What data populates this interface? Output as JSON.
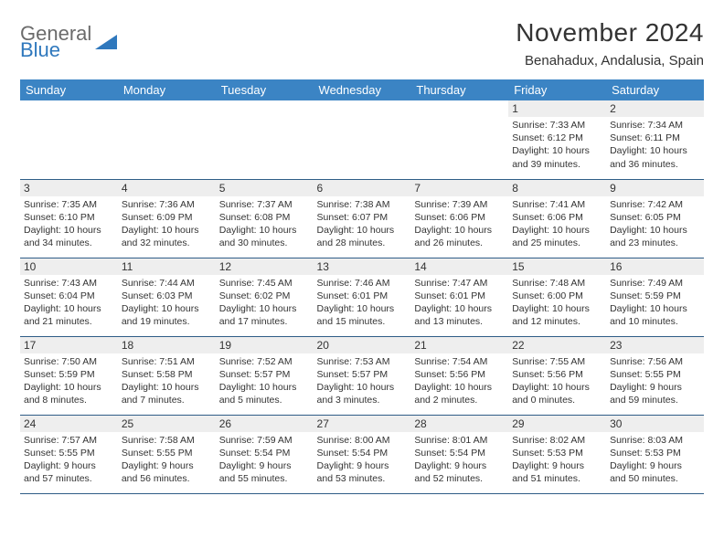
{
  "logo": {
    "general": "General",
    "blue": "Blue",
    "triangle_color": "#2f78bd"
  },
  "title": "November 2024",
  "subtitle": "Benahadux, Andalusia, Spain",
  "colors": {
    "header_bg": "#3b84c4",
    "header_text": "#ffffff",
    "daynum_bg": "#eeeeee",
    "border": "#2f5d87",
    "body_text": "#333333"
  },
  "days_of_week": [
    "Sunday",
    "Monday",
    "Tuesday",
    "Wednesday",
    "Thursday",
    "Friday",
    "Saturday"
  ],
  "weeks": [
    [
      null,
      null,
      null,
      null,
      null,
      {
        "n": "1",
        "sr": "Sunrise: 7:33 AM",
        "ss": "Sunset: 6:12 PM",
        "dl": "Daylight: 10 hours and 39 minutes."
      },
      {
        "n": "2",
        "sr": "Sunrise: 7:34 AM",
        "ss": "Sunset: 6:11 PM",
        "dl": "Daylight: 10 hours and 36 minutes."
      }
    ],
    [
      {
        "n": "3",
        "sr": "Sunrise: 7:35 AM",
        "ss": "Sunset: 6:10 PM",
        "dl": "Daylight: 10 hours and 34 minutes."
      },
      {
        "n": "4",
        "sr": "Sunrise: 7:36 AM",
        "ss": "Sunset: 6:09 PM",
        "dl": "Daylight: 10 hours and 32 minutes."
      },
      {
        "n": "5",
        "sr": "Sunrise: 7:37 AM",
        "ss": "Sunset: 6:08 PM",
        "dl": "Daylight: 10 hours and 30 minutes."
      },
      {
        "n": "6",
        "sr": "Sunrise: 7:38 AM",
        "ss": "Sunset: 6:07 PM",
        "dl": "Daylight: 10 hours and 28 minutes."
      },
      {
        "n": "7",
        "sr": "Sunrise: 7:39 AM",
        "ss": "Sunset: 6:06 PM",
        "dl": "Daylight: 10 hours and 26 minutes."
      },
      {
        "n": "8",
        "sr": "Sunrise: 7:41 AM",
        "ss": "Sunset: 6:06 PM",
        "dl": "Daylight: 10 hours and 25 minutes."
      },
      {
        "n": "9",
        "sr": "Sunrise: 7:42 AM",
        "ss": "Sunset: 6:05 PM",
        "dl": "Daylight: 10 hours and 23 minutes."
      }
    ],
    [
      {
        "n": "10",
        "sr": "Sunrise: 7:43 AM",
        "ss": "Sunset: 6:04 PM",
        "dl": "Daylight: 10 hours and 21 minutes."
      },
      {
        "n": "11",
        "sr": "Sunrise: 7:44 AM",
        "ss": "Sunset: 6:03 PM",
        "dl": "Daylight: 10 hours and 19 minutes."
      },
      {
        "n": "12",
        "sr": "Sunrise: 7:45 AM",
        "ss": "Sunset: 6:02 PM",
        "dl": "Daylight: 10 hours and 17 minutes."
      },
      {
        "n": "13",
        "sr": "Sunrise: 7:46 AM",
        "ss": "Sunset: 6:01 PM",
        "dl": "Daylight: 10 hours and 15 minutes."
      },
      {
        "n": "14",
        "sr": "Sunrise: 7:47 AM",
        "ss": "Sunset: 6:01 PM",
        "dl": "Daylight: 10 hours and 13 minutes."
      },
      {
        "n": "15",
        "sr": "Sunrise: 7:48 AM",
        "ss": "Sunset: 6:00 PM",
        "dl": "Daylight: 10 hours and 12 minutes."
      },
      {
        "n": "16",
        "sr": "Sunrise: 7:49 AM",
        "ss": "Sunset: 5:59 PM",
        "dl": "Daylight: 10 hours and 10 minutes."
      }
    ],
    [
      {
        "n": "17",
        "sr": "Sunrise: 7:50 AM",
        "ss": "Sunset: 5:59 PM",
        "dl": "Daylight: 10 hours and 8 minutes."
      },
      {
        "n": "18",
        "sr": "Sunrise: 7:51 AM",
        "ss": "Sunset: 5:58 PM",
        "dl": "Daylight: 10 hours and 7 minutes."
      },
      {
        "n": "19",
        "sr": "Sunrise: 7:52 AM",
        "ss": "Sunset: 5:57 PM",
        "dl": "Daylight: 10 hours and 5 minutes."
      },
      {
        "n": "20",
        "sr": "Sunrise: 7:53 AM",
        "ss": "Sunset: 5:57 PM",
        "dl": "Daylight: 10 hours and 3 minutes."
      },
      {
        "n": "21",
        "sr": "Sunrise: 7:54 AM",
        "ss": "Sunset: 5:56 PM",
        "dl": "Daylight: 10 hours and 2 minutes."
      },
      {
        "n": "22",
        "sr": "Sunrise: 7:55 AM",
        "ss": "Sunset: 5:56 PM",
        "dl": "Daylight: 10 hours and 0 minutes."
      },
      {
        "n": "23",
        "sr": "Sunrise: 7:56 AM",
        "ss": "Sunset: 5:55 PM",
        "dl": "Daylight: 9 hours and 59 minutes."
      }
    ],
    [
      {
        "n": "24",
        "sr": "Sunrise: 7:57 AM",
        "ss": "Sunset: 5:55 PM",
        "dl": "Daylight: 9 hours and 57 minutes."
      },
      {
        "n": "25",
        "sr": "Sunrise: 7:58 AM",
        "ss": "Sunset: 5:55 PM",
        "dl": "Daylight: 9 hours and 56 minutes."
      },
      {
        "n": "26",
        "sr": "Sunrise: 7:59 AM",
        "ss": "Sunset: 5:54 PM",
        "dl": "Daylight: 9 hours and 55 minutes."
      },
      {
        "n": "27",
        "sr": "Sunrise: 8:00 AM",
        "ss": "Sunset: 5:54 PM",
        "dl": "Daylight: 9 hours and 53 minutes."
      },
      {
        "n": "28",
        "sr": "Sunrise: 8:01 AM",
        "ss": "Sunset: 5:54 PM",
        "dl": "Daylight: 9 hours and 52 minutes."
      },
      {
        "n": "29",
        "sr": "Sunrise: 8:02 AM",
        "ss": "Sunset: 5:53 PM",
        "dl": "Daylight: 9 hours and 51 minutes."
      },
      {
        "n": "30",
        "sr": "Sunrise: 8:03 AM",
        "ss": "Sunset: 5:53 PM",
        "dl": "Daylight: 9 hours and 50 minutes."
      }
    ]
  ]
}
